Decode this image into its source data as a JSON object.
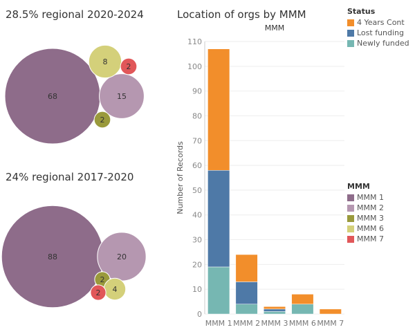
{
  "bubble_titles": {
    "t2020_2024": "28.5% regional 2020-2024",
    "t2017_2020": "24% regional 2017-2020"
  },
  "bar_chart_title": "Location of orgs by MMM",
  "chart_data": [
    {
      "type": "bubble",
      "title": "28.5% regional 2020-2024",
      "points": [
        {
          "category": "MMM 1",
          "value": 68
        },
        {
          "category": "MMM 2",
          "value": 15
        },
        {
          "category": "MMM 6",
          "value": 8
        },
        {
          "category": "MMM 7",
          "value": 2
        },
        {
          "category": "MMM 3",
          "value": 2
        }
      ]
    },
    {
      "type": "bubble",
      "title": "24% regional 2017-2020",
      "points": [
        {
          "category": "MMM 1",
          "value": 88
        },
        {
          "category": "MMM 2",
          "value": 20
        },
        {
          "category": "MMM 3",
          "value": 2
        },
        {
          "category": "MMM 6",
          "value": 4
        },
        {
          "category": "MMM 7",
          "value": 2
        }
      ]
    },
    {
      "type": "bar",
      "stacked": true,
      "title": "Location of orgs by MMM",
      "column_header": "MMM",
      "categories": [
        "MMM 1",
        "MMM 2",
        "MMM 3",
        "MMM 6",
        "MMM 7"
      ],
      "series": [
        {
          "name": "Newly funded",
          "values": [
            19,
            4,
            1,
            4,
            0
          ]
        },
        {
          "name": "Lost funding",
          "values": [
            39,
            9,
            1,
            0,
            0
          ]
        },
        {
          "name": "4 Years Cont",
          "values": [
            49,
            11,
            1,
            4,
            2
          ]
        }
      ],
      "ylabel": "Number of Records",
      "xlabel": "",
      "ylim": [
        0,
        110
      ],
      "yticks": [
        0,
        10,
        20,
        30,
        40,
        50,
        60,
        70,
        80,
        90,
        100,
        110
      ],
      "grid": true
    }
  ],
  "legends": {
    "status": {
      "title": "Status",
      "items": [
        {
          "label": "4 Years Cont",
          "color": "#f28e2b"
        },
        {
          "label": "Lost funding",
          "color": "#4e79a7"
        },
        {
          "label": "Newly funded",
          "color": "#76b7b2"
        }
      ]
    },
    "mmm": {
      "title": "MMM",
      "items": [
        {
          "label": "MMM 1",
          "color": "#8e6c8a"
        },
        {
          "label": "MMM 2",
          "color": "#b597b0"
        },
        {
          "label": "MMM 3",
          "color": "#9a9a3c"
        },
        {
          "label": "MMM 6",
          "color": "#d4d07a"
        },
        {
          "label": "MMM 7",
          "color": "#e15759"
        }
      ]
    }
  },
  "colors": {
    "MMM 1": "#8e6c8a",
    "MMM 2": "#b597b0",
    "MMM 3": "#9a9a3c",
    "MMM 6": "#d4d07a",
    "MMM 7": "#e15759",
    "4 Years Cont": "#f28e2b",
    "Lost funding": "#4e79a7",
    "Newly funded": "#76b7b2"
  }
}
